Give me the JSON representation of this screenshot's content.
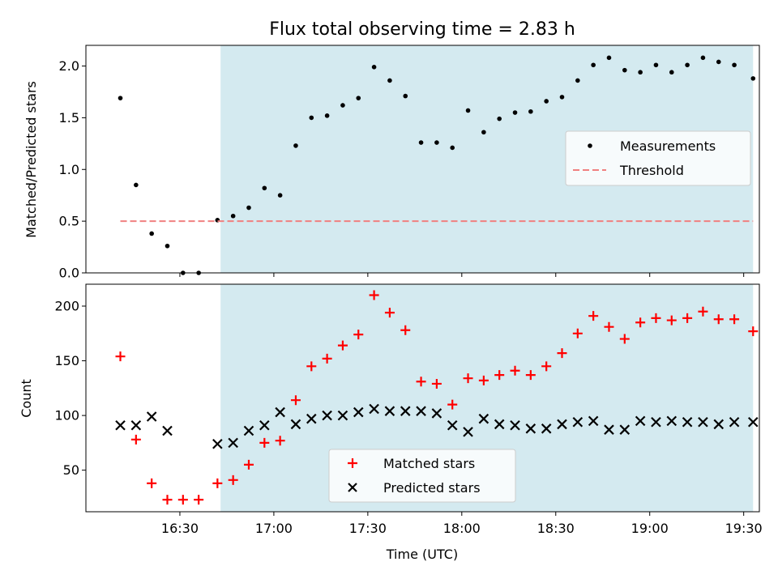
{
  "chart_data": [
    {
      "type": "scatter",
      "title": "Flux total observing time = 2.83 h",
      "ylabel": "Matched/Predicted stars",
      "xlabel": "",
      "ylim": [
        0,
        2.2
      ],
      "yticks": [
        0.0,
        0.5,
        1.0,
        1.5,
        2.0
      ],
      "ytick_labels": [
        "0.0",
        "0.5",
        "1.0",
        "1.5",
        "2.0"
      ],
      "highlight_span": {
        "start": "16:43",
        "end": "19:33",
        "color": "#d4eaf0"
      },
      "legend": {
        "position": "right",
        "entries": [
          "Measurements",
          "Threshold"
        ]
      },
      "series": [
        {
          "name": "Measurements",
          "marker": "dot",
          "color": "#000000",
          "x": [
            "16:11",
            "16:16",
            "16:21",
            "16:26",
            "16:31",
            "16:36",
            "16:42",
            "16:47",
            "16:52",
            "16:57",
            "17:02",
            "17:07",
            "17:12",
            "17:17",
            "17:22",
            "17:27",
            "17:32",
            "17:37",
            "17:42",
            "17:47",
            "17:52",
            "17:57",
            "18:02",
            "18:07",
            "18:12",
            "18:17",
            "18:22",
            "18:27",
            "18:32",
            "18:37",
            "18:42",
            "18:47",
            "18:52",
            "18:57",
            "19:02",
            "19:07",
            "19:12",
            "19:17",
            "19:22",
            "19:27",
            "19:33"
          ],
          "y": [
            1.69,
            0.85,
            0.38,
            0.26,
            0.0,
            0.0,
            0.51,
            0.55,
            0.63,
            0.82,
            0.75,
            1.23,
            1.5,
            1.52,
            1.62,
            1.69,
            1.99,
            1.86,
            1.71,
            1.26,
            1.26,
            1.21,
            1.57,
            1.36,
            1.49,
            1.55,
            1.56,
            1.66,
            1.7,
            1.86,
            2.01,
            2.08,
            1.96,
            1.94,
            2.01,
            1.94,
            2.01,
            2.08,
            2.04,
            2.01,
            1.88
          ]
        },
        {
          "name": "Threshold",
          "marker": "dashed-line",
          "color": "#f08080",
          "x": [
            "16:11",
            "19:33"
          ],
          "y": [
            0.5,
            0.5
          ]
        }
      ]
    },
    {
      "type": "scatter",
      "title": "",
      "ylabel": "Count",
      "xlabel": "Time (UTC)",
      "ylim": [
        12,
        220
      ],
      "yticks": [
        50,
        100,
        150,
        200
      ],
      "ytick_labels": [
        "50",
        "100",
        "150",
        "200"
      ],
      "xlim": [
        "16:00",
        "19:35"
      ],
      "xticks": [
        "16:30",
        "17:00",
        "17:30",
        "18:00",
        "18:30",
        "19:00",
        "19:30"
      ],
      "xtick_labels": [
        "16:30",
        "17:00",
        "17:30",
        "18:00",
        "18:30",
        "19:00",
        "19:30"
      ],
      "highlight_span": {
        "start": "16:43",
        "end": "19:33",
        "color": "#d4eaf0"
      },
      "legend": {
        "position": "bottom-center",
        "entries": [
          "Matched stars",
          "Predicted stars"
        ]
      },
      "series": [
        {
          "name": "Matched stars",
          "marker": "plus",
          "color": "#ff0000",
          "x": [
            "16:11",
            "16:16",
            "16:21",
            "16:26",
            "16:31",
            "16:36",
            "16:42",
            "16:47",
            "16:52",
            "16:57",
            "17:02",
            "17:07",
            "17:12",
            "17:17",
            "17:22",
            "17:27",
            "17:32",
            "17:37",
            "17:42",
            "17:47",
            "17:52",
            "17:57",
            "18:02",
            "18:07",
            "18:12",
            "18:17",
            "18:22",
            "18:27",
            "18:32",
            "18:37",
            "18:42",
            "18:47",
            "18:52",
            "18:57",
            "19:02",
            "19:07",
            "19:12",
            "19:17",
            "19:22",
            "19:27",
            "19:33"
          ],
          "y": [
            154,
            78,
            38,
            23,
            23,
            23,
            38,
            41,
            55,
            75,
            77,
            114,
            145,
            152,
            164,
            174,
            210,
            194,
            178,
            131,
            129,
            110,
            134,
            132,
            137,
            141,
            137,
            145,
            157,
            175,
            191,
            181,
            170,
            185,
            189,
            187,
            189,
            195,
            188,
            188,
            177
          ]
        },
        {
          "name": "Predicted stars",
          "marker": "x",
          "color": "#000000",
          "x": [
            "16:11",
            "16:16",
            "16:21",
            "16:26",
            "16:42",
            "16:47",
            "16:52",
            "16:57",
            "17:02",
            "17:07",
            "17:12",
            "17:17",
            "17:22",
            "17:27",
            "17:32",
            "17:37",
            "17:42",
            "17:47",
            "17:52",
            "17:57",
            "18:02",
            "18:07",
            "18:12",
            "18:17",
            "18:22",
            "18:27",
            "18:32",
            "18:37",
            "18:42",
            "18:47",
            "18:52",
            "18:57",
            "19:02",
            "19:07",
            "19:12",
            "19:17",
            "19:22",
            "19:27",
            "19:33"
          ],
          "y": [
            91,
            91,
            99,
            86,
            74,
            75,
            86,
            91,
            103,
            92,
            97,
            100,
            100,
            103,
            106,
            104,
            104,
            104,
            102,
            91,
            85,
            97,
            92,
            91,
            88,
            88,
            92,
            94,
            95,
            87,
            87,
            95,
            94,
            95,
            94,
            94,
            92,
            94,
            94
          ]
        }
      ]
    }
  ]
}
